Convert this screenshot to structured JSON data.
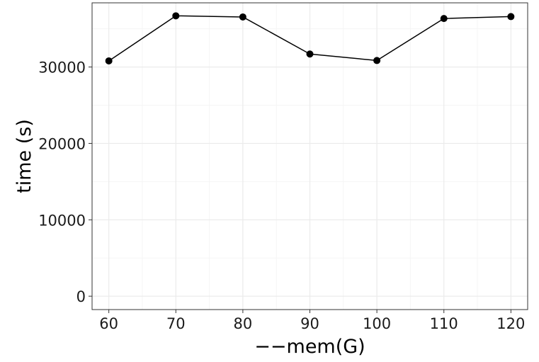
{
  "chart_data": {
    "type": "line",
    "xlabel": "−−mem(G)",
    "ylabel": "time (s)",
    "x": [
      60,
      70,
      80,
      90,
      100,
      110,
      120
    ],
    "series": [
      {
        "values": [
          30800,
          36700,
          36550,
          31700,
          30850,
          36350,
          36600
        ]
      }
    ],
    "xlim": [
      57.5,
      122.5
    ],
    "ylim": [
      -1750,
      38400
    ],
    "xticks": [
      60,
      70,
      80,
      90,
      100,
      110,
      120
    ],
    "yticks": [
      0,
      10000,
      20000,
      30000
    ],
    "grid": true,
    "colors": {
      "line": "#000000",
      "point": "#000000",
      "grid_major": "#ebebeb",
      "grid_minor": "#f5f5f5",
      "panel_border": "#333333",
      "background": "#ffffff"
    }
  }
}
